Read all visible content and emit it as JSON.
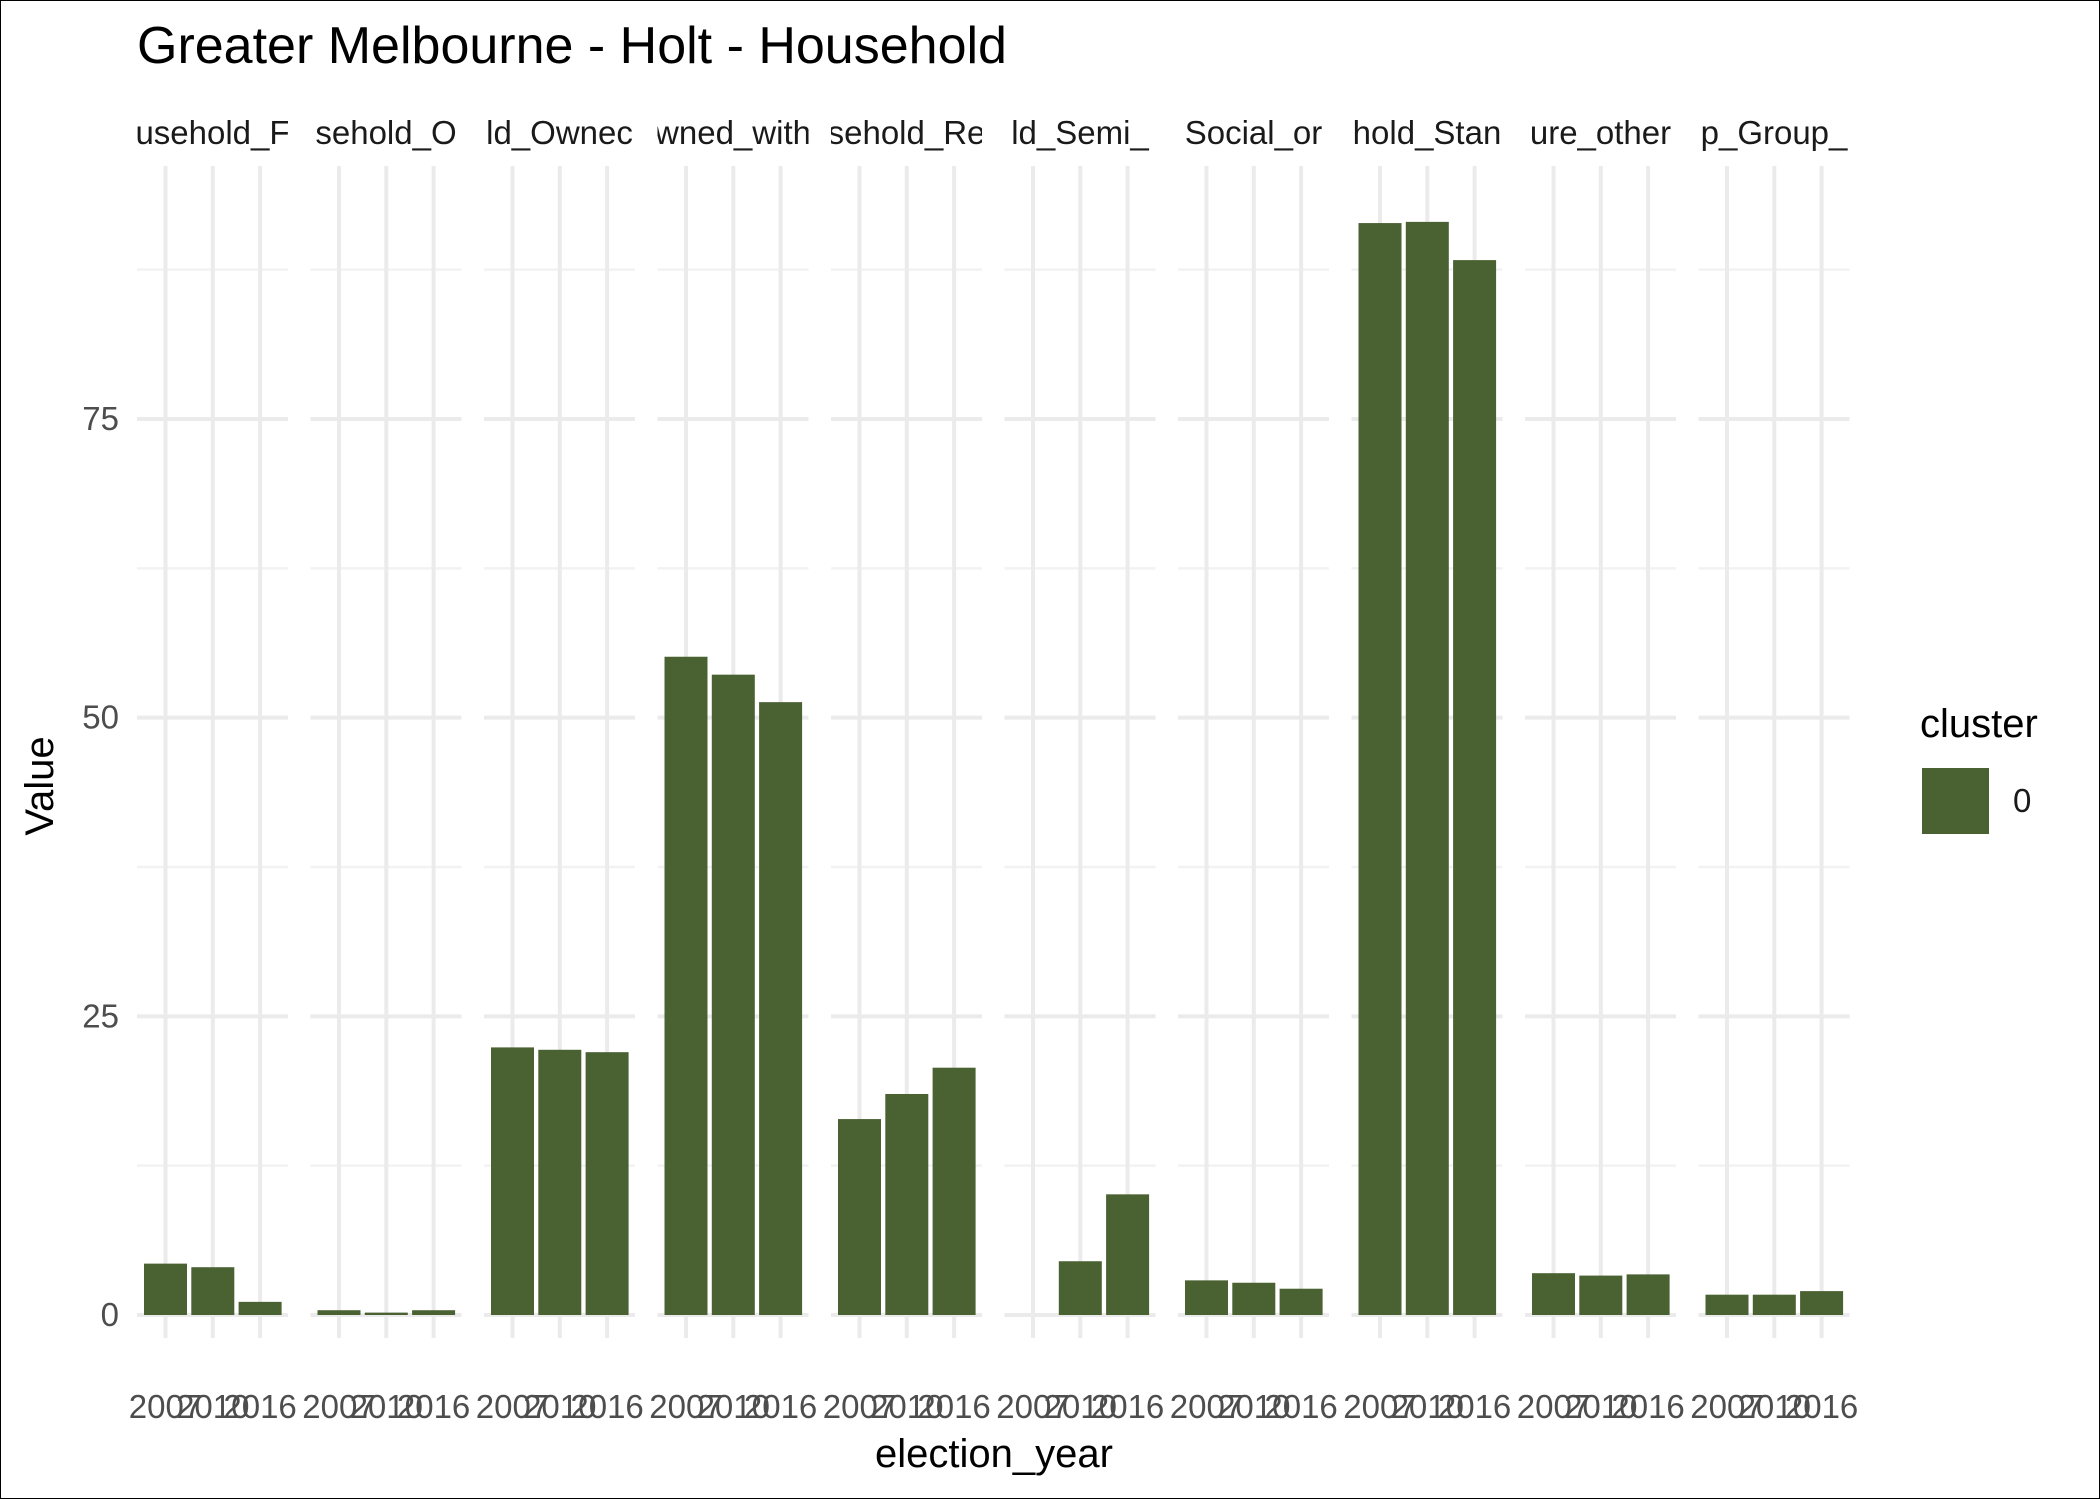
{
  "chart_data": {
    "type": "bar",
    "title": "Greater Melbourne - Holt - Household",
    "xlabel": "election_year",
    "ylabel": "Value",
    "ylim": [
      0,
      96
    ],
    "yticks": [
      0,
      25,
      50,
      75
    ],
    "grid": true,
    "x": [
      "2007",
      "2010",
      "2016"
    ],
    "facets": [
      {
        "label": "usehold_F",
        "values": [
          4.3,
          4.0,
          1.1
        ]
      },
      {
        "label": "sehold_O",
        "values": [
          0.4,
          0.2,
          0.4
        ]
      },
      {
        "label": "ld_Ownec",
        "values": [
          22.4,
          22.2,
          22.0
        ]
      },
      {
        "label": "wned_with",
        "values": [
          55.1,
          53.6,
          51.3
        ]
      },
      {
        "label": "sehold_Re",
        "values": [
          16.4,
          18.5,
          20.7
        ]
      },
      {
        "label": "ld_Semi_",
        "values": [
          null,
          4.5,
          10.1
        ]
      },
      {
        "label": "Social_or",
        "values": [
          2.9,
          2.7,
          2.2
        ]
      },
      {
        "label": "hold_Stan",
        "values": [
          91.4,
          91.5,
          88.3
        ]
      },
      {
        "label": "ure_other",
        "values": [
          3.5,
          3.3,
          3.4
        ]
      },
      {
        "label": "p_Group_",
        "values": [
          1.7,
          1.7,
          2.0
        ]
      }
    ],
    "series": [
      {
        "name": "0",
        "color": "#4a6132"
      }
    ],
    "legend": {
      "title": "cluster",
      "placement": "right"
    }
  }
}
